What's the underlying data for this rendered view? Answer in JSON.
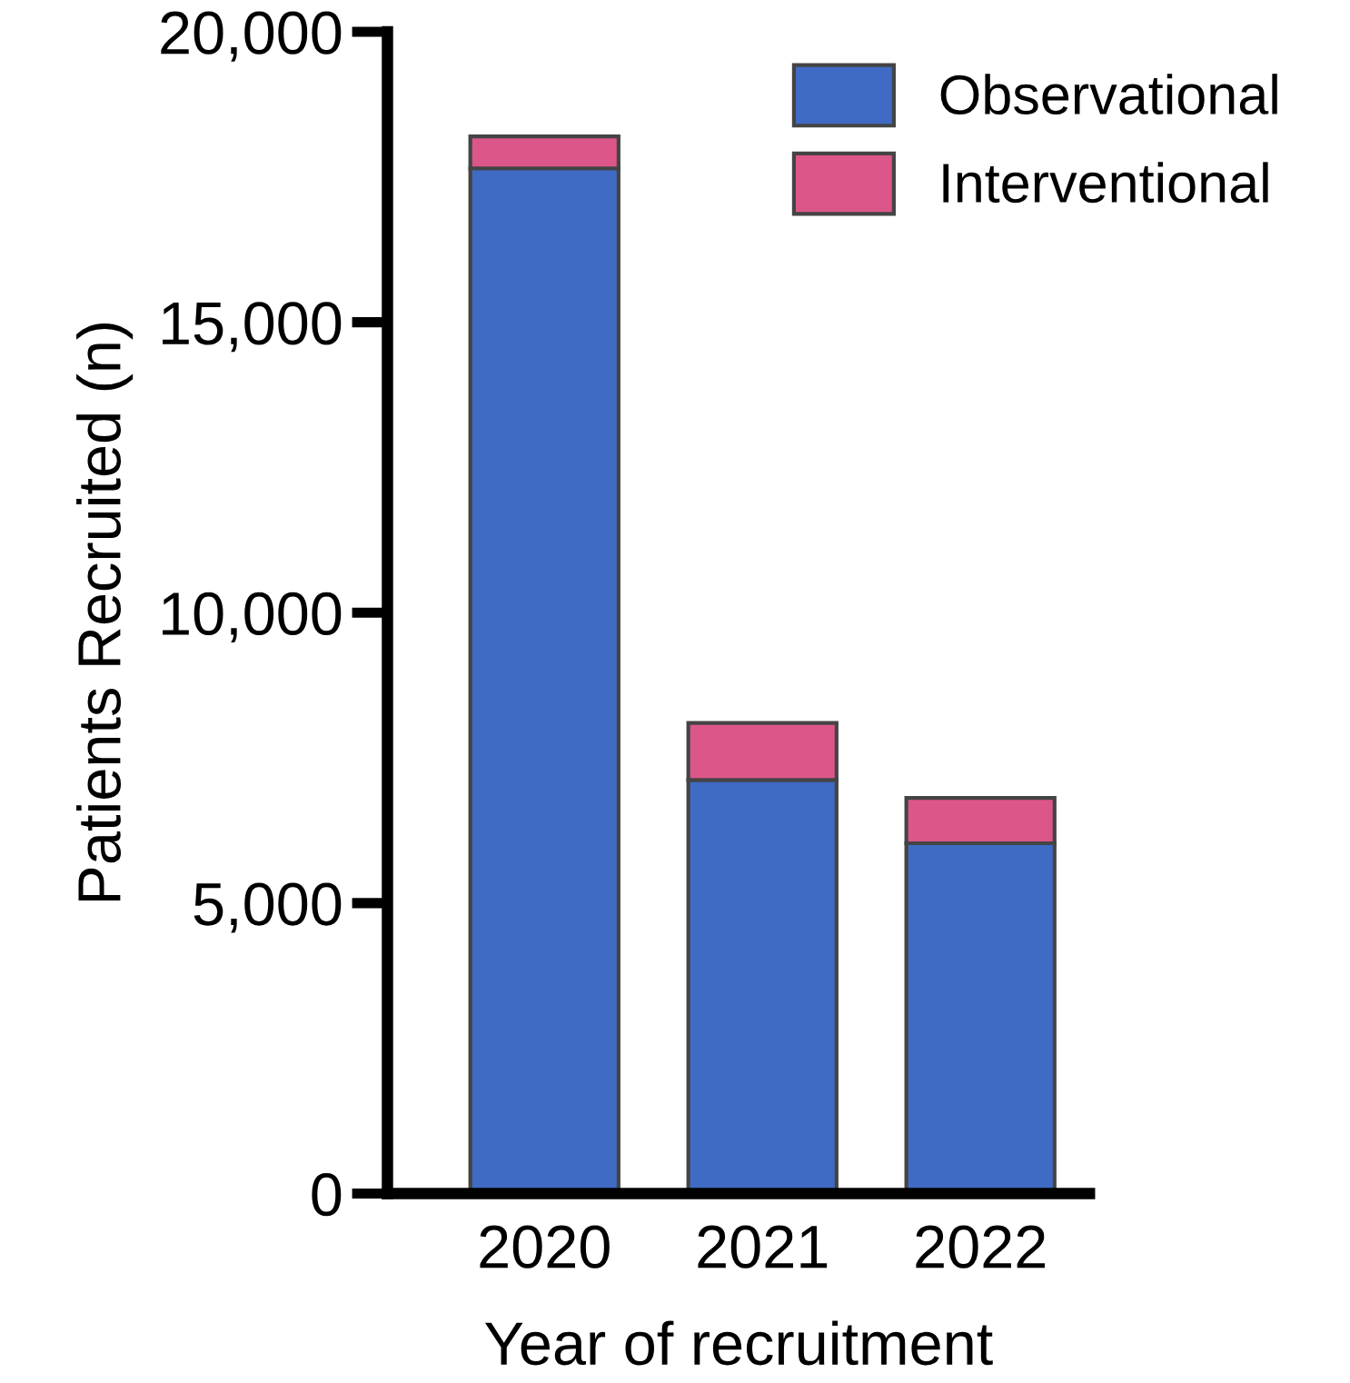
{
  "chart_data": {
    "type": "bar",
    "stacked": true,
    "categories": [
      "2020",
      "2021",
      "2022"
    ],
    "series": [
      {
        "name": "Observational",
        "color": "#3f6bc4",
        "values": [
          17650,
          7120,
          6030
        ]
      },
      {
        "name": "Interventional",
        "color": "#dd568a",
        "values": [
          550,
          980,
          780
        ]
      }
    ],
    "xlabel": "Year of recruitment",
    "ylabel": "Patients Recruited (n)",
    "ylim": [
      0,
      20000
    ],
    "yticks": [
      {
        "value": 0,
        "label": "0"
      },
      {
        "value": 5000,
        "label": "5,000"
      },
      {
        "value": 10000,
        "label": "10,000"
      },
      {
        "value": 15000,
        "label": "15,000"
      },
      {
        "value": 20000,
        "label": "20,000"
      }
    ],
    "legend": "top right",
    "grid": false
  }
}
